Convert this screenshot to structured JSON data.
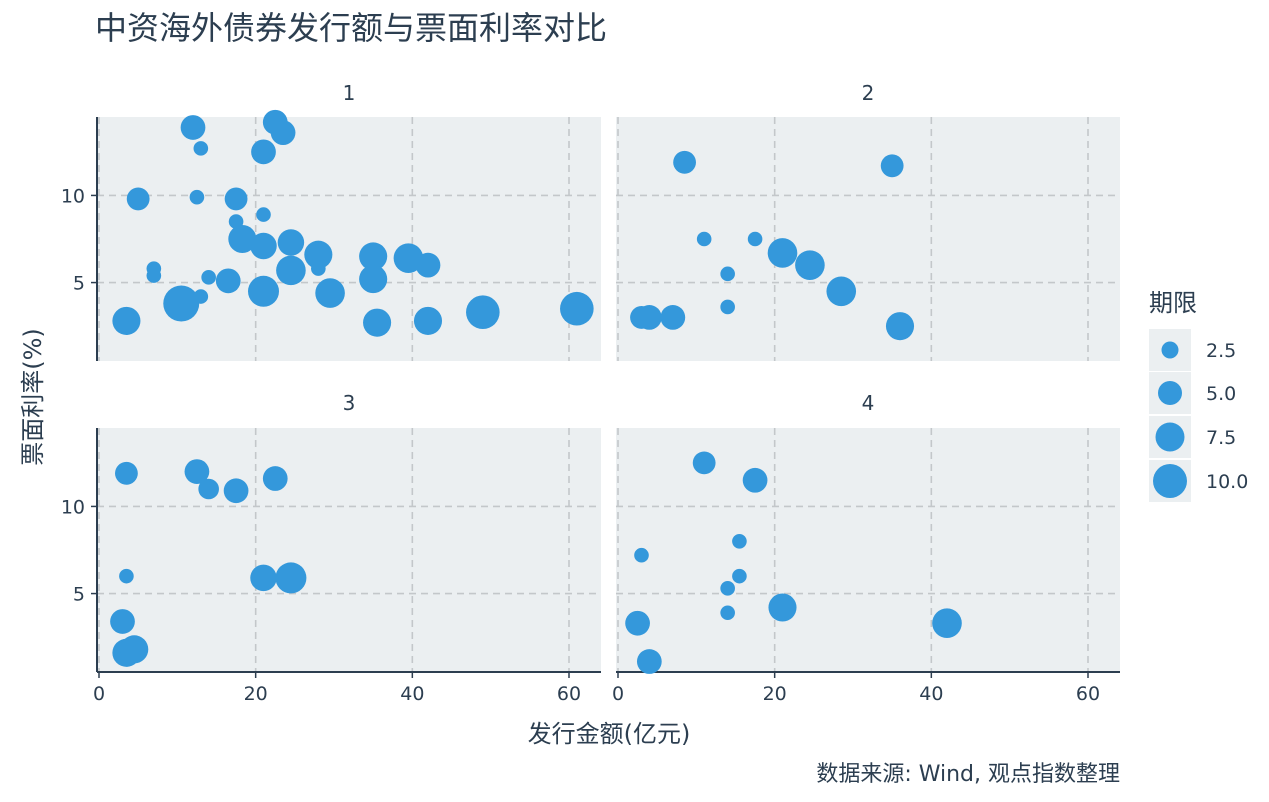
{
  "colors": {
    "point": "#3498db",
    "panel_bg": "#ebeff1",
    "grid": "#c3c7ca",
    "axis": "#2c3e50",
    "text": "#2c3e50"
  },
  "chart_data": {
    "type": "scatter",
    "title": "中资海外债券发行额与票面利率对比",
    "xlabel": "发行金额(亿元)",
    "ylabel": "票面利率(%)",
    "caption": "数据来源: Wind, 观点指数整理",
    "xlim": [
      0,
      65
    ],
    "ylim": [
      0.5,
      14.5
    ],
    "xticks": [
      0,
      20,
      40,
      60
    ],
    "yticks": [
      5,
      10
    ],
    "grid": true,
    "facet_variable": "quarter",
    "size_variable": "期限",
    "legend": {
      "title": "期限",
      "position": "right",
      "entries": [
        {
          "label": "2.5",
          "value": 2.5
        },
        {
          "label": "5.0",
          "value": 5.0
        },
        {
          "label": "7.5",
          "value": 7.5
        },
        {
          "label": "10.0",
          "value": 10.0
        }
      ]
    },
    "panels": [
      {
        "label": "1",
        "points": [
          {
            "x": 12,
            "y": 13.9,
            "size": 5
          },
          {
            "x": 13,
            "y": 12.7,
            "size": 1
          },
          {
            "x": 22.5,
            "y": 14.2,
            "size": 5
          },
          {
            "x": 23.5,
            "y": 13.6,
            "size": 5
          },
          {
            "x": 21,
            "y": 12.5,
            "size": 5
          },
          {
            "x": 5,
            "y": 9.8,
            "size": 4
          },
          {
            "x": 12.5,
            "y": 9.9,
            "size": 1
          },
          {
            "x": 17.5,
            "y": 9.8,
            "size": 4
          },
          {
            "x": 21,
            "y": 8.9,
            "size": 1
          },
          {
            "x": 17.5,
            "y": 8.5,
            "size": 1
          },
          {
            "x": 18.3,
            "y": 7.5,
            "size": 7
          },
          {
            "x": 21,
            "y": 7.1,
            "size": 6
          },
          {
            "x": 24.5,
            "y": 7.3,
            "size": 6
          },
          {
            "x": 28,
            "y": 6.6,
            "size": 7
          },
          {
            "x": 35,
            "y": 6.5,
            "size": 7
          },
          {
            "x": 39.5,
            "y": 6.4,
            "size": 8
          },
          {
            "x": 42,
            "y": 6,
            "size": 5
          },
          {
            "x": 7,
            "y": 5.8,
            "size": 1
          },
          {
            "x": 7,
            "y": 5.4,
            "size": 1
          },
          {
            "x": 14,
            "y": 5.3,
            "size": 1
          },
          {
            "x": 28,
            "y": 5.8,
            "size": 1
          },
          {
            "x": 24.5,
            "y": 5.7,
            "size": 8
          },
          {
            "x": 16.5,
            "y": 5.1,
            "size": 5
          },
          {
            "x": 35,
            "y": 5.2,
            "size": 7
          },
          {
            "x": 13,
            "y": 4.2,
            "size": 1
          },
          {
            "x": 21,
            "y": 4.5,
            "size": 9
          },
          {
            "x": 29.5,
            "y": 4.4,
            "size": 8
          },
          {
            "x": 10.5,
            "y": 3.8,
            "size": 13
          },
          {
            "x": 3.5,
            "y": 2.8,
            "size": 7
          },
          {
            "x": 35.5,
            "y": 2.7,
            "size": 7
          },
          {
            "x": 42,
            "y": 2.8,
            "size": 7
          },
          {
            "x": 49,
            "y": 3.3,
            "size": 11
          },
          {
            "x": 61,
            "y": 3.5,
            "size": 11
          }
        ]
      },
      {
        "label": "2",
        "points": [
          {
            "x": 8.5,
            "y": 11.9,
            "size": 4
          },
          {
            "x": 35,
            "y": 11.7,
            "size": 4
          },
          {
            "x": 11,
            "y": 7.5,
            "size": 1
          },
          {
            "x": 17.5,
            "y": 7.5,
            "size": 1
          },
          {
            "x": 21,
            "y": 6.7,
            "size": 8
          },
          {
            "x": 24.5,
            "y": 6,
            "size": 8
          },
          {
            "x": 14,
            "y": 5.5,
            "size": 1
          },
          {
            "x": 28.5,
            "y": 4.5,
            "size": 8
          },
          {
            "x": 14,
            "y": 3.6,
            "size": 1
          },
          {
            "x": 3,
            "y": 3,
            "size": 4
          },
          {
            "x": 4,
            "y": 3,
            "size": 5
          },
          {
            "x": 7,
            "y": 3,
            "size": 5
          },
          {
            "x": 36,
            "y": 2.5,
            "size": 7
          }
        ]
      },
      {
        "label": "3",
        "points": [
          {
            "x": 3.5,
            "y": 11.9,
            "size": 4
          },
          {
            "x": 12.5,
            "y": 12,
            "size": 5
          },
          {
            "x": 14,
            "y": 11,
            "size": 3
          },
          {
            "x": 17.5,
            "y": 10.9,
            "size": 5
          },
          {
            "x": 22.5,
            "y": 11.6,
            "size": 5
          },
          {
            "x": 3.5,
            "y": 6,
            "size": 1
          },
          {
            "x": 21,
            "y": 5.9,
            "size": 6
          },
          {
            "x": 24.5,
            "y": 5.9,
            "size": 9
          },
          {
            "x": 3,
            "y": 3.4,
            "size": 5
          },
          {
            "x": 3.5,
            "y": 1.6,
            "size": 7
          },
          {
            "x": 4.5,
            "y": 1.8,
            "size": 7
          }
        ]
      },
      {
        "label": "4",
        "points": [
          {
            "x": 11,
            "y": 12.5,
            "size": 4
          },
          {
            "x": 17.5,
            "y": 11.5,
            "size": 5
          },
          {
            "x": 15.5,
            "y": 8,
            "size": 1
          },
          {
            "x": 3,
            "y": 7.2,
            "size": 1
          },
          {
            "x": 15.5,
            "y": 6,
            "size": 1
          },
          {
            "x": 14,
            "y": 5.3,
            "size": 1
          },
          {
            "x": 21,
            "y": 4.2,
            "size": 7
          },
          {
            "x": 14,
            "y": 3.9,
            "size": 1
          },
          {
            "x": 2.5,
            "y": 3.3,
            "size": 5
          },
          {
            "x": 42,
            "y": 3.3,
            "size": 8
          },
          {
            "x": 4,
            "y": 1.1,
            "size": 5
          }
        ]
      }
    ]
  }
}
